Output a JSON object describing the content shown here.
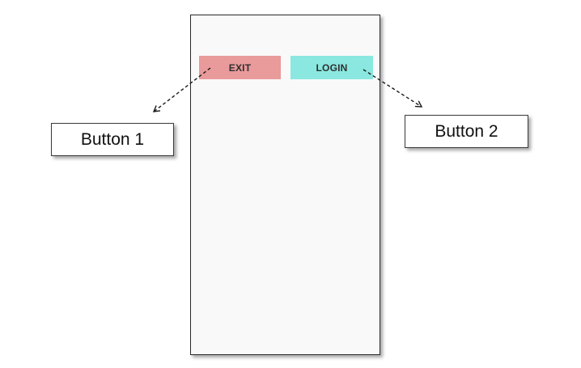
{
  "colors": {
    "exit_button_bg": "#e99a9a",
    "login_button_bg": "#8ae8e0",
    "screen_bg": "#f9f9f9"
  },
  "screen": {
    "exit_label": "EXIT",
    "login_label": "LOGIN"
  },
  "annotations": {
    "button1_label": "Button 1",
    "button2_label": "Button 2"
  }
}
